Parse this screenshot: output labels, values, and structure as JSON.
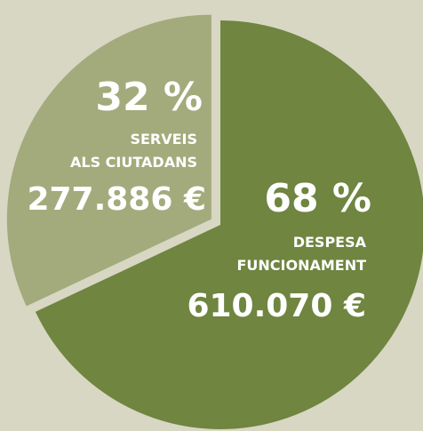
{
  "chart_data": {
    "type": "pie",
    "categories": [
      [
        "DESPESA",
        "FUNCIONAMENT"
      ],
      [
        "SERVEIS",
        "ALS CIUTADANS"
      ]
    ],
    "values": [
      68,
      32
    ],
    "value_labels": [
      "68 %",
      "32 %"
    ],
    "amount_labels": [
      "610.070 €",
      "277.886 €"
    ],
    "colors": [
      "#6f8540",
      "#a3ab7c"
    ]
  }
}
